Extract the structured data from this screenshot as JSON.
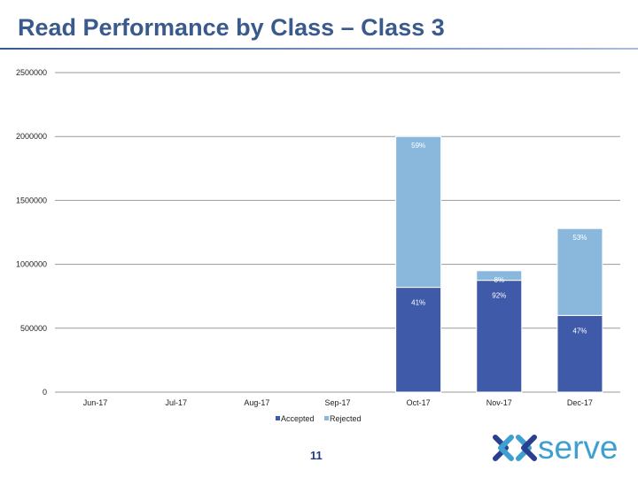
{
  "title": "Read Performance by Class – Class 3",
  "page_number": "11",
  "logo": {
    "text": "xoserve",
    "visible_text": "serve"
  },
  "colors": {
    "accepted": "#3f5aa8",
    "rejected": "#8ab8dc",
    "title": "#3a5a8c",
    "logo": "#3ea0d0"
  },
  "chart_data": {
    "type": "bar",
    "stacked": true,
    "categories": [
      "Jun-17",
      "Jul-17",
      "Aug-17",
      "Sep-17",
      "Oct-17",
      "Nov-17",
      "Dec-17"
    ],
    "series": [
      {
        "name": "Accepted",
        "values": [
          0,
          0,
          0,
          0,
          820000,
          875000,
          600000
        ]
      },
      {
        "name": "Rejected",
        "values": [
          0,
          0,
          0,
          0,
          1180000,
          75000,
          680000
        ]
      }
    ],
    "data_labels": [
      {
        "category": "Oct-17",
        "series": "Rejected",
        "text": "59%"
      },
      {
        "category": "Oct-17",
        "series": "Accepted",
        "text": "41%"
      },
      {
        "category": "Nov-17",
        "series": "Rejected",
        "text": "8%"
      },
      {
        "category": "Nov-17",
        "series": "Accepted",
        "text": "92%"
      },
      {
        "category": "Dec-17",
        "series": "Rejected",
        "text": "53%"
      },
      {
        "category": "Dec-17",
        "series": "Accepted",
        "text": "47%"
      }
    ],
    "y_ticks": [
      "0",
      "500000",
      "1000000",
      "1500000",
      "2000000",
      "2500000"
    ],
    "ylim": [
      0,
      2500000
    ],
    "grid": true,
    "legend": "bottom"
  }
}
